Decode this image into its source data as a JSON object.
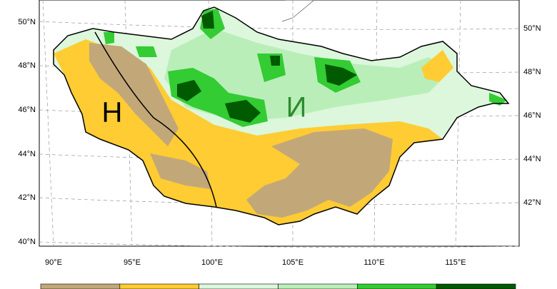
{
  "latitude_labels_left": [
    "50°N",
    "48°N",
    "46°N",
    "44°N",
    "42°N",
    "40°N"
  ],
  "latitude_labels_right": [
    "50°N",
    "48°N",
    "46°N",
    "44°N",
    "42°N"
  ],
  "longitude_labels": [
    "90°E",
    "95°E",
    "100°E",
    "105°E",
    "110°E",
    "115°E"
  ],
  "region_labels": [
    "Н",
    "И"
  ],
  "colorbar": {
    "colors": [
      "#c2a878",
      "#ffcc33",
      "#dcf7dc",
      "#b9eeb9",
      "#33cc33",
      "#005a00"
    ]
  }
}
